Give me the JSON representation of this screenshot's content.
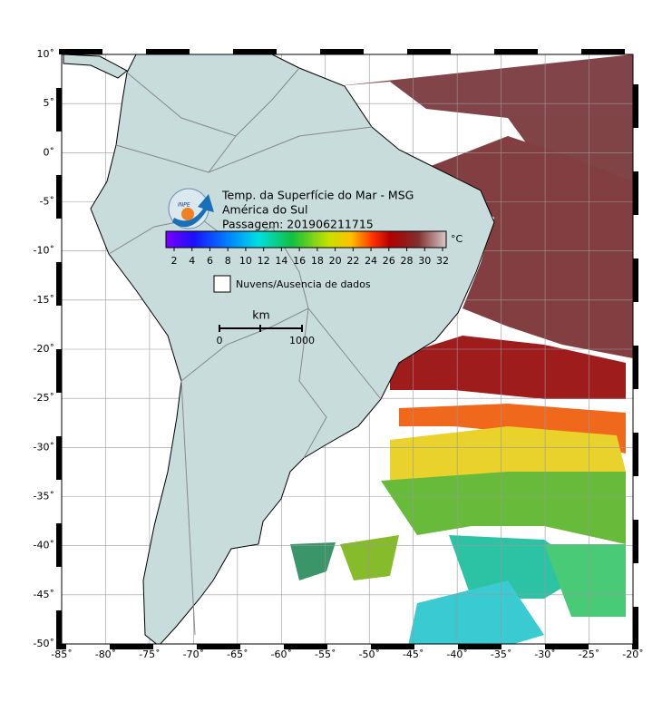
{
  "map": {
    "title": "Temp. da Superfície do Mar - MSG",
    "region": "América do Sul",
    "pass": "Passagem: 201906211715",
    "logo_text": "INPE",
    "colorbar": {
      "unit": "°C",
      "ticks": [
        {
          "value": 2,
          "label": "2"
        },
        {
          "value": 4,
          "label": "4"
        },
        {
          "value": 6,
          "label": "6"
        },
        {
          "value": 8,
          "label": "8"
        },
        {
          "value": 10,
          "label": "10"
        },
        {
          "value": 12,
          "label": "12"
        },
        {
          "value": 14,
          "label": "14"
        },
        {
          "value": 16,
          "label": "16"
        },
        {
          "value": 18,
          "label": "18"
        },
        {
          "value": 20,
          "label": "20"
        },
        {
          "value": 22,
          "label": "22"
        },
        {
          "value": 24,
          "label": "24"
        },
        {
          "value": 26,
          "label": "26"
        },
        {
          "value": 28,
          "label": "28"
        },
        {
          "value": 30,
          "label": "30"
        },
        {
          "value": 32,
          "label": "32"
        }
      ]
    },
    "legend": "Nuvens/Ausencia de dados",
    "scale_bar": {
      "unit": "km",
      "start": "0",
      "end": "1000"
    },
    "lat_ticks": [
      {
        "value": 10,
        "label": "10˚"
      },
      {
        "value": 5,
        "label": "5˚"
      },
      {
        "value": 0,
        "label": "0˚"
      },
      {
        "value": -5,
        "label": "-5˚"
      },
      {
        "value": -10,
        "label": "-10˚"
      },
      {
        "value": -15,
        "label": "-15˚"
      },
      {
        "value": -20,
        "label": "-20˚"
      },
      {
        "value": -25,
        "label": "-25˚"
      },
      {
        "value": -30,
        "label": "-30˚"
      },
      {
        "value": -35,
        "label": "-35˚"
      },
      {
        "value": -40,
        "label": "-40˚"
      },
      {
        "value": -45,
        "label": "-45˚"
      },
      {
        "value": -50,
        "label": "-50˚"
      }
    ],
    "lon_ticks": [
      {
        "value": -85,
        "label": "-85˚"
      },
      {
        "value": -80,
        "label": "-80˚"
      },
      {
        "value": -75,
        "label": "-75˚"
      },
      {
        "value": -70,
        "label": "-70˚"
      },
      {
        "value": -65,
        "label": "-65˚"
      },
      {
        "value": -60,
        "label": "-60˚"
      },
      {
        "value": -55,
        "label": "-55˚"
      },
      {
        "value": -50,
        "label": "-50˚"
      },
      {
        "value": -45,
        "label": "-45˚"
      },
      {
        "value": -40,
        "label": "-40˚"
      },
      {
        "value": -35,
        "label": "-35˚"
      },
      {
        "value": -30,
        "label": "-30˚"
      },
      {
        "value": -25,
        "label": "-25˚"
      },
      {
        "value": -20,
        "label": "-20˚"
      }
    ]
  }
}
